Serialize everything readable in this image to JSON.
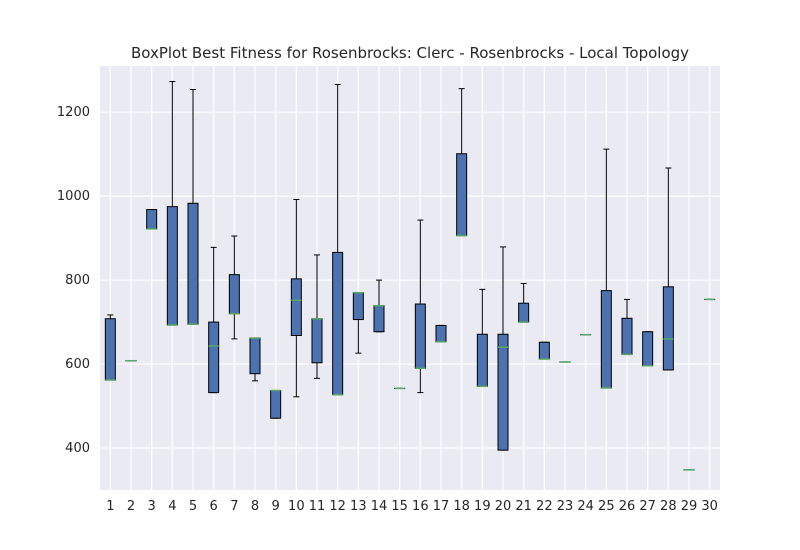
{
  "chart_data": {
    "type": "box",
    "title": "BoxPlot Best Fitness for Rosenbrocks: Clerc - Rosenbrocks - Local Topology",
    "xlabel": "",
    "ylabel": "",
    "ylim": [
      300,
      1310
    ],
    "yticks": [
      400,
      600,
      800,
      1000,
      1200
    ],
    "grid": true,
    "categories": [
      "1",
      "2",
      "3",
      "4",
      "5",
      "6",
      "7",
      "8",
      "9",
      "10",
      "11",
      "12",
      "13",
      "14",
      "15",
      "16",
      "17",
      "18",
      "19",
      "20",
      "21",
      "22",
      "23",
      "24",
      "25",
      "26",
      "27",
      "28",
      "29",
      "30"
    ],
    "boxes": [
      {
        "whislo": 562,
        "q1": 562,
        "med": 562,
        "q3": 708,
        "whishi": 717
      },
      {
        "whislo": 608,
        "q1": 608,
        "med": 608,
        "q3": 608,
        "whishi": 608
      },
      {
        "whislo": 922,
        "q1": 922,
        "med": 922,
        "q3": 968,
        "whishi": 968
      },
      {
        "whislo": 693,
        "q1": 693,
        "med": 693,
        "q3": 975,
        "whishi": 1273
      },
      {
        "whislo": 695,
        "q1": 695,
        "med": 695,
        "q3": 983,
        "whishi": 1254
      },
      {
        "whislo": 532,
        "q1": 532,
        "med": 643,
        "q3": 700,
        "whishi": 878
      },
      {
        "whislo": 660,
        "q1": 720,
        "med": 720,
        "q3": 813,
        "whishi": 905
      },
      {
        "whislo": 560,
        "q1": 577,
        "med": 662,
        "q3": 662,
        "whishi": 662
      },
      {
        "whislo": 471,
        "q1": 471,
        "med": 537,
        "q3": 537,
        "whishi": 537
      },
      {
        "whislo": 522,
        "q1": 668,
        "med": 752,
        "q3": 803,
        "whishi": 992
      },
      {
        "whislo": 566,
        "q1": 603,
        "med": 708,
        "q3": 708,
        "whishi": 860
      },
      {
        "whislo": 527,
        "q1": 527,
        "med": 527,
        "q3": 866,
        "whishi": 1266
      },
      {
        "whislo": 626,
        "q1": 706,
        "med": 770,
        "q3": 770,
        "whishi": 770
      },
      {
        "whislo": 677,
        "q1": 677,
        "med": 739,
        "q3": 739,
        "whishi": 800
      },
      {
        "whislo": 542,
        "q1": 542,
        "med": 542,
        "q3": 542,
        "whishi": 542
      },
      {
        "whislo": 532,
        "q1": 590,
        "med": 590,
        "q3": 743,
        "whishi": 943
      },
      {
        "whislo": 653,
        "q1": 653,
        "med": 653,
        "q3": 692,
        "whishi": 692
      },
      {
        "whislo": 906,
        "q1": 906,
        "med": 906,
        "q3": 1101,
        "whishi": 1256
      },
      {
        "whislo": 547,
        "q1": 547,
        "med": 547,
        "q3": 671,
        "whishi": 778
      },
      {
        "whislo": 395,
        "q1": 395,
        "med": 640,
        "q3": 671,
        "whishi": 879
      },
      {
        "whislo": 700,
        "q1": 700,
        "med": 700,
        "q3": 745,
        "whishi": 792
      },
      {
        "whislo": 612,
        "q1": 612,
        "med": 612,
        "q3": 652,
        "whishi": 652
      },
      {
        "whislo": 605,
        "q1": 605,
        "med": 605,
        "q3": 605,
        "whishi": 605
      },
      {
        "whislo": 670,
        "q1": 670,
        "med": 670,
        "q3": 670,
        "whishi": 670
      },
      {
        "whislo": 543,
        "q1": 543,
        "med": 543,
        "q3": 775,
        "whishi": 1112
      },
      {
        "whislo": 623,
        "q1": 623,
        "med": 623,
        "q3": 709,
        "whishi": 754
      },
      {
        "whislo": 596,
        "q1": 596,
        "med": 596,
        "q3": 677,
        "whishi": 677
      },
      {
        "whislo": 586,
        "q1": 586,
        "med": 660,
        "q3": 784,
        "whishi": 1067
      },
      {
        "whislo": 348,
        "q1": 348,
        "med": 348,
        "q3": 348,
        "whishi": 348
      },
      {
        "whislo": 754,
        "q1": 754,
        "med": 754,
        "q3": 754,
        "whishi": 754
      }
    ],
    "colors": {
      "plot_background": "#EAEAF2",
      "grid": "#FFFFFF",
      "box_fill": "#4C72B0",
      "box_edge": "#000000",
      "median": "#55A868",
      "whisker": "#000000"
    }
  }
}
